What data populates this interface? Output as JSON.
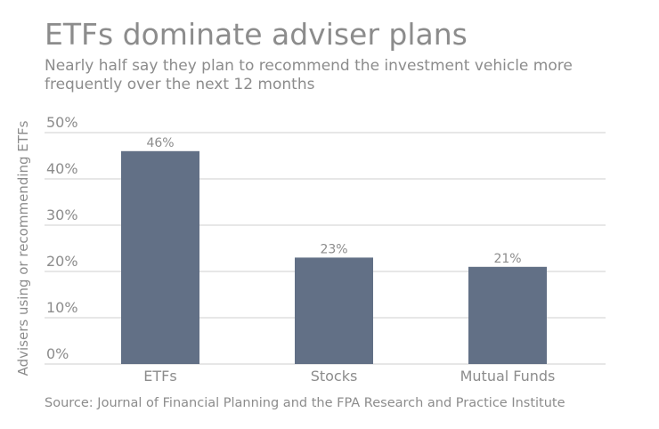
{
  "chart_data": {
    "type": "bar",
    "title": "ETFs dominate adviser plans",
    "subtitle": [
      "Nearly half say they plan to recommend the investment vehicle more",
      "frequently over the next 12 months"
    ],
    "y_label": "Advisers using or recommending ETFs",
    "source": "Source: Journal of Financial Planning and the FPA Research and Practice Institute",
    "categories": [
      "ETFs",
      "Stocks",
      "Mutual Funds"
    ],
    "values": [
      46,
      23,
      21
    ],
    "value_labels": [
      "46%",
      "23%",
      "21%"
    ],
    "color": "#627086",
    "ylim": [
      0,
      50
    ],
    "yticks": [
      {
        "value": 0,
        "label": "0%"
      },
      {
        "value": 10,
        "label": "10%"
      },
      {
        "value": 20,
        "label": "20%"
      },
      {
        "value": 30,
        "label": "30%"
      },
      {
        "value": 40,
        "label": "40%"
      },
      {
        "value": 50,
        "label": "50%"
      }
    ],
    "grid": true
  }
}
